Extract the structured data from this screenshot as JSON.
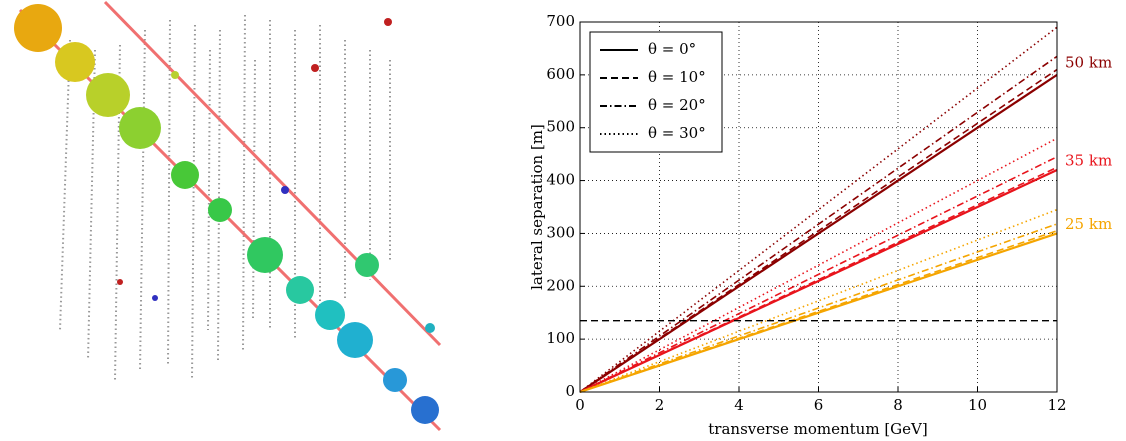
{
  "chart_data": {
    "type": "line",
    "xlabel": "transverse momentum [GeV]",
    "ylabel": "lateral separation [m]",
    "xlim": [
      0,
      12
    ],
    "ylim": [
      0,
      700
    ],
    "xticks": [
      0,
      2,
      4,
      6,
      8,
      10,
      12
    ],
    "yticks": [
      0,
      100,
      200,
      300,
      400,
      500,
      600,
      700
    ],
    "grid": true,
    "legend_position": "upper left",
    "legend": [
      {
        "label": "θ = 0°",
        "style": "solid"
      },
      {
        "label": "θ = 10°",
        "style": "dashed"
      },
      {
        "label": "θ = 20°",
        "style": "dashdot"
      },
      {
        "label": "θ = 30°",
        "style": "dotted"
      }
    ],
    "x": [
      0,
      12
    ],
    "groups": [
      {
        "label": "50 km",
        "color": "#8b0000",
        "series": [
          {
            "style": "solid",
            "values": [
              0,
              600
            ]
          },
          {
            "style": "dashed",
            "values": [
              0,
              610
            ]
          },
          {
            "style": "dashdot",
            "values": [
              0,
              635
            ]
          },
          {
            "style": "dotted",
            "values": [
              0,
              690
            ]
          }
        ]
      },
      {
        "label": "35 km",
        "color": "#e8141c",
        "series": [
          {
            "style": "solid",
            "values": [
              0,
              420
            ]
          },
          {
            "style": "dashed",
            "values": [
              0,
              425
            ]
          },
          {
            "style": "dashdot",
            "values": [
              0,
              445
            ]
          },
          {
            "style": "dotted",
            "values": [
              0,
              480
            ]
          }
        ]
      },
      {
        "label": "25 km",
        "color": "#f5a500",
        "series": [
          {
            "style": "solid",
            "values": [
              0,
              300
            ]
          },
          {
            "style": "dashed",
            "values": [
              0,
              305
            ]
          },
          {
            "style": "dashdot",
            "values": [
              0,
              318
            ]
          },
          {
            "style": "dotted",
            "values": [
              0,
              345
            ]
          }
        ]
      }
    ],
    "hline": {
      "value": 135,
      "style": "dashed",
      "color": "#000000"
    }
  }
}
